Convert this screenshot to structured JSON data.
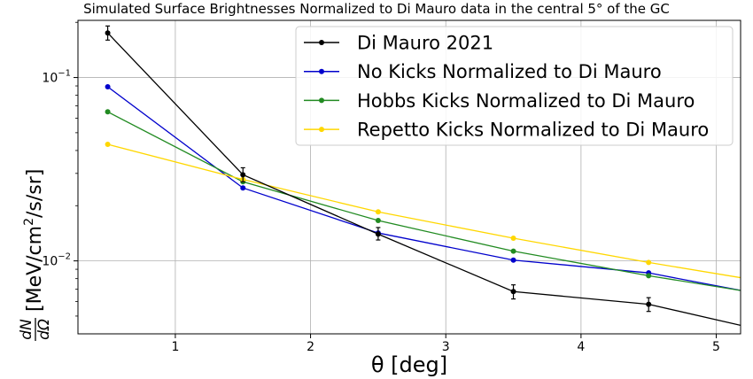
{
  "chart_data": {
    "type": "line",
    "title": "Simulated Surface Brightnesses Normalized to Di Mauro data in the central 5° of the GC",
    "xlabel": "θ [deg]",
    "ylabel": "dN/dΩ [MeV/cm²/s/sr]",
    "ylabel_parts": {
      "num": "dN",
      "den": "dΩ",
      "unit_open": "[MeV/cm",
      "unit_sup": "2",
      "unit_close": "/s/sr]"
    },
    "xlim": [
      0.28,
      5.18
    ],
    "ylim": [
      0.004,
      0.205
    ],
    "yscale": "log",
    "grid": true,
    "legend_position": "top-right",
    "x_ticks": [
      {
        "value": 1,
        "label": "1"
      },
      {
        "value": 2,
        "label": "2"
      },
      {
        "value": 3,
        "label": "3"
      },
      {
        "value": 4,
        "label": "4"
      },
      {
        "value": 5,
        "label": "5"
      }
    ],
    "y_ticks": [
      {
        "value": 0.1,
        "mant": "10",
        "exp": "−1"
      },
      {
        "value": 0.01,
        "mant": "10",
        "exp": "−2"
      }
    ],
    "series": [
      {
        "name": "Di Mauro 2021",
        "color": "#000000",
        "x": [
          0.5,
          1.5,
          2.5,
          3.5,
          4.5
        ],
        "y": [
          0.175,
          0.0295,
          0.014,
          0.0068,
          0.0058
        ],
        "yerr_low": [
          0.16,
          0.027,
          0.013,
          0.0062,
          0.0053
        ],
        "yerr_high": [
          0.191,
          0.0322,
          0.0152,
          0.0074,
          0.0063
        ],
        "extend_to": {
          "x": 5.18,
          "y": 0.00445
        }
      },
      {
        "name": "No Kicks Normalized to Di Mauro",
        "color": "#0000cc",
        "x": [
          0.5,
          1.5,
          2.5,
          3.5,
          4.5
        ],
        "y": [
          0.089,
          0.025,
          0.0142,
          0.0101,
          0.0086
        ],
        "extend_to": {
          "x": 5.18,
          "y": 0.0069
        }
      },
      {
        "name": "Hobbs Kicks Normalized to Di Mauro",
        "color": "#228b22",
        "x": [
          0.5,
          1.5,
          2.5,
          3.5,
          4.5
        ],
        "y": [
          0.065,
          0.027,
          0.0166,
          0.0113,
          0.0083
        ],
        "extend_to": {
          "x": 5.18,
          "y": 0.0069
        }
      },
      {
        "name": "Repetto Kicks Normalized to Di Mauro",
        "color": "#ffd700",
        "x": [
          0.5,
          1.5,
          2.5,
          3.5,
          4.5
        ],
        "y": [
          0.0432,
          0.0278,
          0.0185,
          0.0133,
          0.0098
        ],
        "extend_to": {
          "x": 5.18,
          "y": 0.0081
        }
      }
    ]
  }
}
